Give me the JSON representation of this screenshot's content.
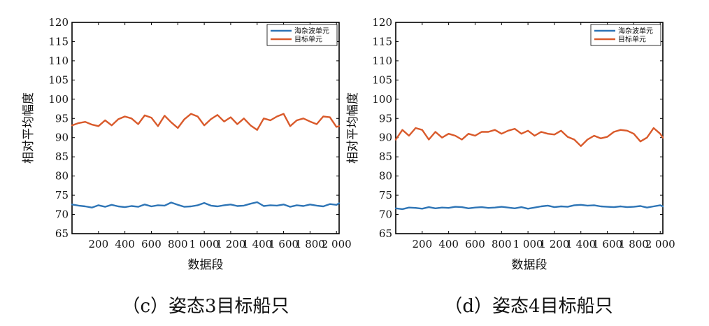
{
  "chart_data": [
    {
      "type": "line",
      "caption": "（c）姿态3目标船只",
      "xlabel": "数据段",
      "ylabel": "相对平均幅度",
      "xlim": [
        0,
        2020
      ],
      "ylim": [
        65,
        120
      ],
      "xticks": [
        200,
        400,
        600,
        800,
        1000,
        1200,
        1400,
        1600,
        1800,
        2000
      ],
      "xtick_labels": [
        "200",
        "400",
        "600",
        "800",
        "1 000",
        "1 200",
        "1 400",
        "1 600",
        "1 800",
        "2 000"
      ],
      "yticks": [
        65,
        70,
        75,
        80,
        85,
        90,
        95,
        100,
        105,
        110,
        115,
        120
      ],
      "legend_position": "top-right",
      "grid": false,
      "series": [
        {
          "name": "海杂波单元",
          "color": "#2e75b6",
          "x": [
            0,
            50,
            100,
            150,
            200,
            250,
            300,
            350,
            400,
            450,
            500,
            550,
            600,
            650,
            700,
            750,
            800,
            850,
            900,
            950,
            1000,
            1050,
            1100,
            1150,
            1200,
            1250,
            1300,
            1350,
            1400,
            1450,
            1500,
            1550,
            1600,
            1650,
            1700,
            1750,
            1800,
            1850,
            1900,
            1950,
            2000,
            2020
          ],
          "values": [
            72.6,
            72.3,
            72.1,
            71.8,
            72.4,
            72.0,
            72.5,
            72.1,
            71.9,
            72.2,
            72.0,
            72.6,
            72.1,
            72.4,
            72.3,
            73.1,
            72.5,
            72.0,
            72.1,
            72.4,
            73.0,
            72.3,
            72.1,
            72.4,
            72.6,
            72.2,
            72.3,
            72.8,
            73.2,
            72.2,
            72.4,
            72.3,
            72.6,
            72.0,
            72.4,
            72.2,
            72.6,
            72.3,
            72.1,
            72.7,
            72.5,
            72.9
          ]
        },
        {
          "name": "目标单元",
          "color": "#d95a2b",
          "x": [
            0,
            50,
            100,
            150,
            200,
            250,
            300,
            350,
            400,
            450,
            500,
            550,
            600,
            650,
            700,
            750,
            800,
            850,
            900,
            950,
            1000,
            1050,
            1100,
            1150,
            1200,
            1250,
            1300,
            1350,
            1400,
            1450,
            1500,
            1550,
            1600,
            1650,
            1700,
            1750,
            1800,
            1850,
            1900,
            1950,
            2000,
            2020
          ],
          "values": [
            93.2,
            93.8,
            94.1,
            93.4,
            93.0,
            94.5,
            93.2,
            94.8,
            95.5,
            95.0,
            93.5,
            95.8,
            95.2,
            93.0,
            95.7,
            94.0,
            92.5,
            94.8,
            96.2,
            95.5,
            93.2,
            94.8,
            95.9,
            94.2,
            95.3,
            93.5,
            95.0,
            93.2,
            92.0,
            95.0,
            94.5,
            95.5,
            96.2,
            93.0,
            94.5,
            95.0,
            94.2,
            93.5,
            95.5,
            95.3,
            92.8,
            93.0
          ]
        }
      ]
    },
    {
      "type": "line",
      "caption": "（d）姿态4目标船只",
      "xlabel": "数据段",
      "ylabel": "相对平均幅度",
      "xlim": [
        0,
        2020
      ],
      "ylim": [
        65,
        120
      ],
      "xticks": [
        200,
        400,
        600,
        800,
        1000,
        1200,
        1400,
        1600,
        1800,
        2000
      ],
      "xtick_labels": [
        "200",
        "400",
        "600",
        "800",
        "1 000",
        "1 200",
        "1 400",
        "1 600",
        "1 800",
        "2 000"
      ],
      "yticks": [
        65,
        70,
        75,
        80,
        85,
        90,
        95,
        100,
        105,
        110,
        115,
        120
      ],
      "legend_position": "top-right",
      "grid": false,
      "series": [
        {
          "name": "海杂波单元",
          "color": "#2e75b6",
          "x": [
            0,
            50,
            100,
            150,
            200,
            250,
            300,
            350,
            400,
            450,
            500,
            550,
            600,
            650,
            700,
            750,
            800,
            850,
            900,
            950,
            1000,
            1050,
            1100,
            1150,
            1200,
            1250,
            1300,
            1350,
            1400,
            1450,
            1500,
            1550,
            1600,
            1650,
            1700,
            1750,
            1800,
            1850,
            1900,
            1950,
            2000,
            2020
          ],
          "values": [
            71.6,
            71.4,
            71.8,
            71.7,
            71.5,
            71.9,
            71.6,
            71.8,
            71.7,
            72.0,
            71.9,
            71.6,
            71.8,
            71.9,
            71.7,
            71.8,
            72.0,
            71.8,
            71.6,
            71.9,
            71.5,
            71.8,
            72.1,
            72.3,
            71.9,
            72.1,
            72.0,
            72.4,
            72.5,
            72.3,
            72.4,
            72.1,
            72.0,
            71.9,
            72.1,
            71.9,
            72.0,
            72.2,
            71.8,
            72.1,
            72.4,
            72.1
          ]
        },
        {
          "name": "目标单元",
          "color": "#d95a2b",
          "x": [
            0,
            50,
            100,
            150,
            200,
            250,
            300,
            350,
            400,
            450,
            500,
            550,
            600,
            650,
            700,
            750,
            800,
            850,
            900,
            950,
            1000,
            1050,
            1100,
            1150,
            1200,
            1250,
            1300,
            1350,
            1400,
            1450,
            1500,
            1550,
            1600,
            1650,
            1700,
            1750,
            1800,
            1850,
            1900,
            1950,
            2000,
            2020
          ],
          "values": [
            89.5,
            92.0,
            90.5,
            92.5,
            92.0,
            89.5,
            91.5,
            90.0,
            91.0,
            90.5,
            89.5,
            91.0,
            90.5,
            91.5,
            91.5,
            92.0,
            91.0,
            91.8,
            92.3,
            91.0,
            91.8,
            90.5,
            91.5,
            91.0,
            90.8,
            91.8,
            90.2,
            89.5,
            87.8,
            89.5,
            90.5,
            89.8,
            90.2,
            91.5,
            92.0,
            91.8,
            91.0,
            89.0,
            90.0,
            92.5,
            91.0,
            90.0
          ]
        }
      ]
    }
  ]
}
